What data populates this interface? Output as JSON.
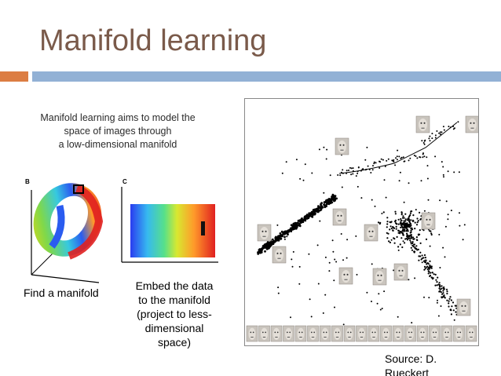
{
  "slide": {
    "title": "Manifold learning",
    "accent_colors": {
      "orange": "#dc7d43",
      "blue": "#92b1d5",
      "title": "#7a5a4a"
    }
  },
  "left_panel": {
    "intro_lines": [
      "Manifold learning aims to model the",
      "space of images through",
      "a low-dimensional manifold"
    ],
    "figure_b_label": "B",
    "figure_c_label": "C",
    "caption_find": "Find a manifold",
    "caption_embed_lines": [
      "Embed the data",
      "to the manifold",
      "(project to less-",
      "dimensional",
      "space)"
    ]
  },
  "right_panel": {
    "description_icon": "face-thumbnail-icon"
  },
  "source": {
    "lines": [
      "Source: D.",
      "Rueckert"
    ]
  }
}
